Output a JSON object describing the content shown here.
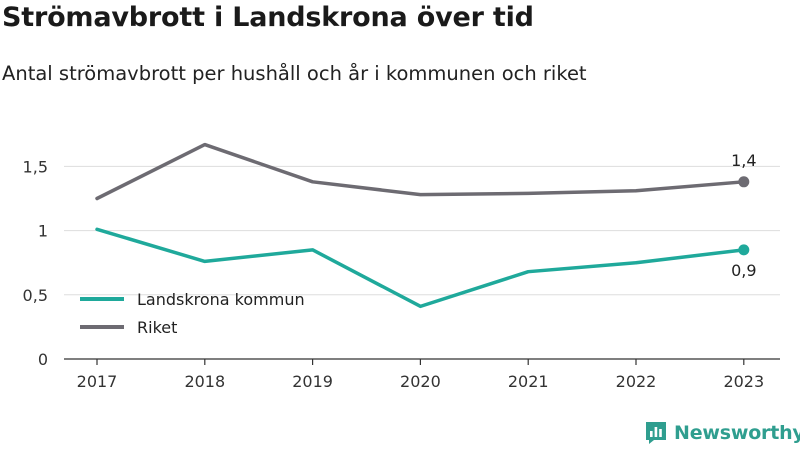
{
  "title": "Strömavbrott i Landskrona över tid",
  "subtitle": "Antal strömavbrott per hushåll och år i kommunen och riket",
  "brand": {
    "name": "Newsworthy",
    "icon": "newsworthy-logo-icon",
    "color": "#2f9e8f"
  },
  "chart_data": {
    "type": "line",
    "x": [
      "2017",
      "2018",
      "2019",
      "2020",
      "2021",
      "2022",
      "2023"
    ],
    "yticks": [
      "0",
      "0,5",
      "1",
      "1,5"
    ],
    "ylim": [
      0,
      1.7
    ],
    "grid": true,
    "legend_position": "left, inside plot",
    "series": [
      {
        "name": "Landskrona kommun",
        "color": "#1fa99b",
        "values": [
          1.01,
          0.76,
          0.85,
          0.41,
          0.68,
          0.75,
          0.85
        ],
        "end_label": "0,9"
      },
      {
        "name": "Riket",
        "color": "#6d6b72",
        "values": [
          1.25,
          1.67,
          1.38,
          1.28,
          1.29,
          1.31,
          1.38
        ],
        "end_label": "1,4"
      }
    ]
  }
}
